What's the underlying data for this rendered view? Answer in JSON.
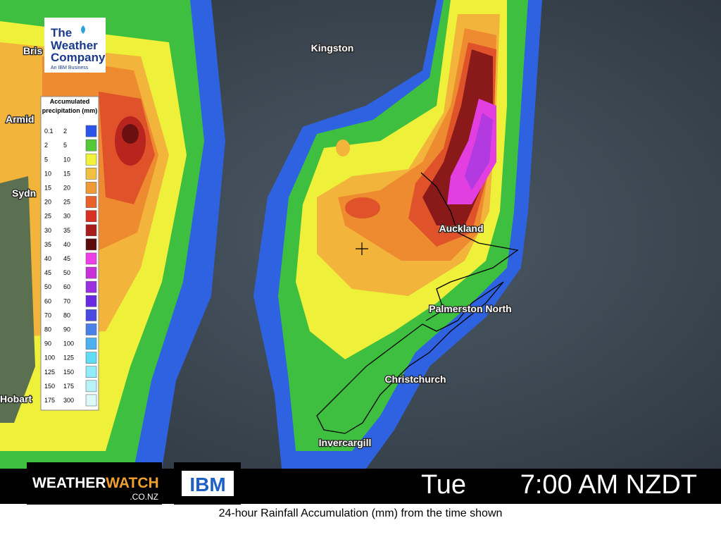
{
  "map": {
    "cities": [
      "Kingston",
      "Auckland",
      "Palmerston North",
      "Christchurch",
      "Invercargill",
      "Bris",
      "Armid",
      "Sydn",
      "Hobart"
    ]
  },
  "logo": {
    "line1": "The",
    "line2": "Weather",
    "line3": "Company",
    "subtitle": "An IBM Business"
  },
  "legend": {
    "title_line1": "Accumulated",
    "title_line2": "precipitation (mm)",
    "rows": [
      {
        "from": "0.1",
        "to": "2",
        "color": "#2a55e8"
      },
      {
        "from": "2",
        "to": "5",
        "color": "#55c83a"
      },
      {
        "from": "5",
        "to": "10",
        "color": "#f2f23a"
      },
      {
        "from": "10",
        "to": "15",
        "color": "#f2c040"
      },
      {
        "from": "15",
        "to": "20",
        "color": "#ee9a35"
      },
      {
        "from": "20",
        "to": "25",
        "color": "#e8602a"
      },
      {
        "from": "25",
        "to": "30",
        "color": "#d83025"
      },
      {
        "from": "30",
        "to": "35",
        "color": "#a81c1c"
      },
      {
        "from": "35",
        "to": "40",
        "color": "#5a0c0c"
      },
      {
        "from": "40",
        "to": "45",
        "color": "#ee3ee8"
      },
      {
        "from": "45",
        "to": "50",
        "color": "#c830d8"
      },
      {
        "from": "50",
        "to": "60",
        "color": "#9a30e0"
      },
      {
        "from": "60",
        "to": "70",
        "color": "#6a28e0"
      },
      {
        "from": "70",
        "to": "80",
        "color": "#4a4ae0"
      },
      {
        "from": "80",
        "to": "90",
        "color": "#4a80e8"
      },
      {
        "from": "90",
        "to": "100",
        "color": "#4ab0f0"
      },
      {
        "from": "100",
        "to": "125",
        "color": "#60dcf5"
      },
      {
        "from": "125",
        "to": "150",
        "color": "#90ecf8"
      },
      {
        "from": "150",
        "to": "175",
        "color": "#b8f2f8"
      },
      {
        "from": "175",
        "to": "300",
        "color": "#dcfafa"
      }
    ]
  },
  "footer": {
    "brand_part1": "WEATHER",
    "brand_part2": "WATCH",
    "brand_domain": ".CO.NZ",
    "partner": "IBM",
    "day": "Tue",
    "time": "7:00 AM NZDT",
    "caption": "24-hour Rainfall Accumulation (mm) from the time shown"
  }
}
